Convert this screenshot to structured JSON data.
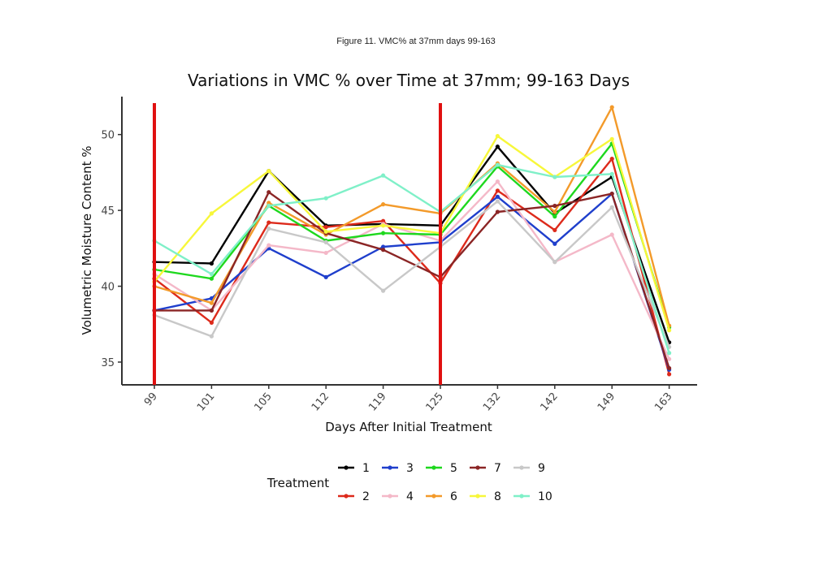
{
  "caption": "Figure 11. VMC% at 37mm days 99-163",
  "chart_data": {
    "type": "line",
    "title": "Variations in VMC % over Time at 37mm; 99-163 Days",
    "xlabel": "Days After Initial Treatment",
    "ylabel": "Volumetric Moisture Content %",
    "categories": [
      "99",
      "101",
      "105",
      "112",
      "119",
      "125",
      "132",
      "142",
      "149",
      "163"
    ],
    "ylim": [
      33.5,
      52.5
    ],
    "yticks": [
      35,
      40,
      45,
      50
    ],
    "grid": false,
    "legend": {
      "title": "Treatment",
      "position": "bottom"
    },
    "vertical_markers": {
      "color": "#e01010",
      "at_categories": [
        "99",
        "125"
      ]
    },
    "series": [
      {
        "name": "1",
        "color": "#000000",
        "values": [
          41.6,
          41.5,
          47.6,
          44.0,
          44.1,
          44.0,
          49.2,
          44.8,
          47.2,
          36.3
        ]
      },
      {
        "name": "2",
        "color": "#dd2a1b",
        "values": [
          40.5,
          37.6,
          44.2,
          43.9,
          44.3,
          40.2,
          46.3,
          43.7,
          48.4,
          34.2
        ]
      },
      {
        "name": "3",
        "color": "#1f3fcc",
        "values": [
          38.4,
          39.2,
          42.5,
          40.6,
          42.6,
          42.9,
          45.9,
          42.8,
          46.1,
          34.5
        ]
      },
      {
        "name": "4",
        "color": "#f4b8c8",
        "values": [
          40.8,
          38.4,
          42.7,
          42.2,
          44.1,
          43.0,
          46.9,
          41.6,
          43.4,
          35.2
        ]
      },
      {
        "name": "5",
        "color": "#1ed81e",
        "values": [
          41.1,
          40.5,
          45.3,
          43.0,
          43.5,
          43.4,
          47.9,
          44.6,
          49.4,
          37.3
        ]
      },
      {
        "name": "6",
        "color": "#f39a2a",
        "values": [
          40.0,
          38.9,
          45.5,
          43.4,
          45.4,
          44.8,
          48.1,
          44.9,
          51.8,
          37.4
        ]
      },
      {
        "name": "7",
        "color": "#8b2525",
        "values": [
          38.4,
          38.4,
          46.2,
          43.5,
          42.4,
          40.6,
          44.9,
          45.3,
          46.1,
          34.6
        ]
      },
      {
        "name": "8",
        "color": "#f7f73a",
        "values": [
          40.3,
          44.8,
          47.6,
          43.6,
          44.0,
          43.5,
          49.9,
          47.2,
          49.7,
          37.1
        ]
      },
      {
        "name": "9",
        "color": "#c8c8c8",
        "values": [
          38.1,
          36.7,
          43.8,
          42.9,
          39.7,
          42.6,
          45.6,
          41.6,
          45.2,
          36.0
        ]
      },
      {
        "name": "10",
        "color": "#7ff0c8",
        "values": [
          43.0,
          40.8,
          45.3,
          45.8,
          47.3,
          44.9,
          48.0,
          47.2,
          47.4,
          35.6
        ]
      }
    ]
  }
}
